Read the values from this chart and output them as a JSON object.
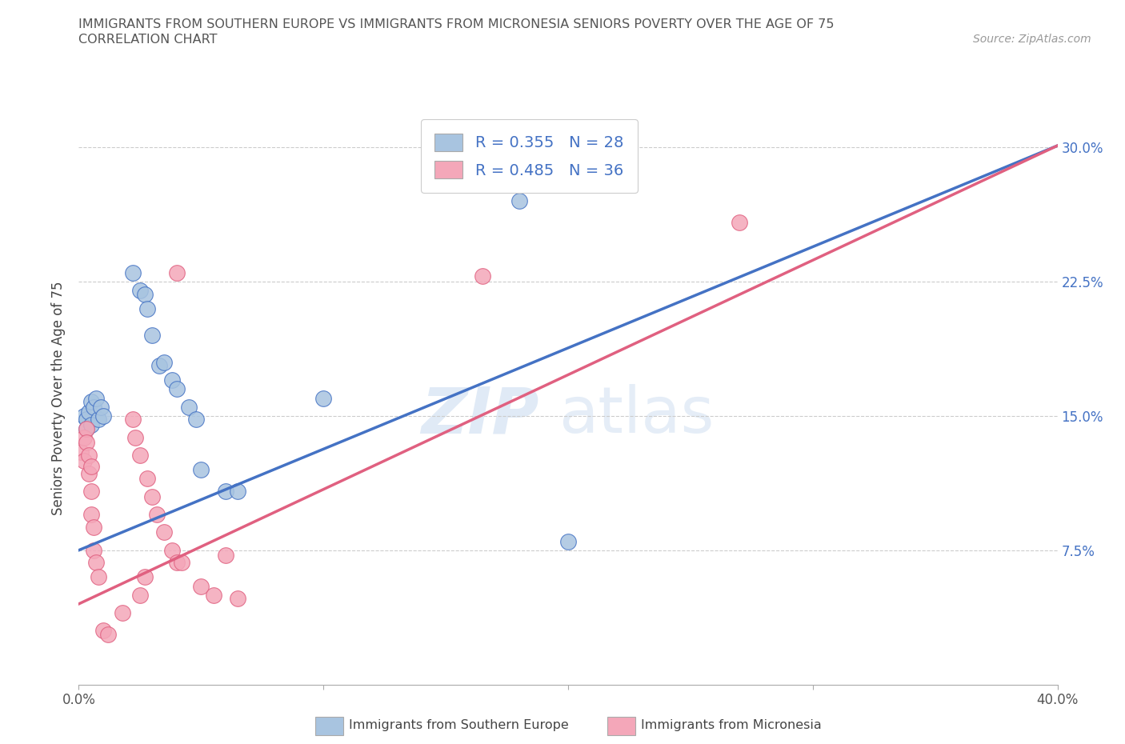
{
  "title_line1": "IMMIGRANTS FROM SOUTHERN EUROPE VS IMMIGRANTS FROM MICRONESIA SENIORS POVERTY OVER THE AGE OF 75",
  "title_line2": "CORRELATION CHART",
  "source_text": "Source: ZipAtlas.com",
  "ylabel": "Seniors Poverty Over the Age of 75",
  "y_ticks": [
    0.075,
    0.15,
    0.225,
    0.3
  ],
  "y_ticklabels": [
    "7.5%",
    "15.0%",
    "22.5%",
    "30.0%"
  ],
  "xlim": [
    0.0,
    0.4
  ],
  "ylim": [
    0.0,
    0.32
  ],
  "watermark_zip": "ZIP",
  "watermark_atlas": "atlas",
  "legend_label_blue": "Immigrants from Southern Europe",
  "legend_label_pink": "Immigrants from Micronesia",
  "R_blue": 0.355,
  "N_blue": 28,
  "R_pink": 0.485,
  "N_pink": 36,
  "blue_color": "#a8c4e0",
  "pink_color": "#f4a7b9",
  "blue_line_color": "#4472c4",
  "pink_line_color": "#e06080",
  "blue_scatter": [
    [
      0.002,
      0.15
    ],
    [
      0.003,
      0.148
    ],
    [
      0.003,
      0.143
    ],
    [
      0.004,
      0.152
    ],
    [
      0.005,
      0.158
    ],
    [
      0.005,
      0.145
    ],
    [
      0.006,
      0.155
    ],
    [
      0.007,
      0.16
    ],
    [
      0.008,
      0.148
    ],
    [
      0.009,
      0.155
    ],
    [
      0.01,
      0.15
    ],
    [
      0.022,
      0.23
    ],
    [
      0.025,
      0.22
    ],
    [
      0.027,
      0.218
    ],
    [
      0.028,
      0.21
    ],
    [
      0.03,
      0.195
    ],
    [
      0.033,
      0.178
    ],
    [
      0.035,
      0.18
    ],
    [
      0.038,
      0.17
    ],
    [
      0.04,
      0.165
    ],
    [
      0.045,
      0.155
    ],
    [
      0.048,
      0.148
    ],
    [
      0.05,
      0.12
    ],
    [
      0.06,
      0.108
    ],
    [
      0.065,
      0.108
    ],
    [
      0.1,
      0.16
    ],
    [
      0.18,
      0.27
    ],
    [
      0.2,
      0.08
    ]
  ],
  "pink_scatter": [
    [
      0.001,
      0.13
    ],
    [
      0.002,
      0.138
    ],
    [
      0.002,
      0.125
    ],
    [
      0.003,
      0.143
    ],
    [
      0.003,
      0.135
    ],
    [
      0.004,
      0.128
    ],
    [
      0.004,
      0.118
    ],
    [
      0.005,
      0.122
    ],
    [
      0.005,
      0.108
    ],
    [
      0.005,
      0.095
    ],
    [
      0.006,
      0.088
    ],
    [
      0.006,
      0.075
    ],
    [
      0.007,
      0.068
    ],
    [
      0.008,
      0.06
    ],
    [
      0.01,
      0.03
    ],
    [
      0.022,
      0.148
    ],
    [
      0.023,
      0.138
    ],
    [
      0.025,
      0.128
    ],
    [
      0.028,
      0.115
    ],
    [
      0.03,
      0.105
    ],
    [
      0.032,
      0.095
    ],
    [
      0.035,
      0.085
    ],
    [
      0.038,
      0.075
    ],
    [
      0.04,
      0.068
    ],
    [
      0.042,
      0.068
    ],
    [
      0.05,
      0.055
    ],
    [
      0.055,
      0.05
    ],
    [
      0.06,
      0.072
    ],
    [
      0.04,
      0.23
    ],
    [
      0.012,
      0.028
    ],
    [
      0.018,
      0.04
    ],
    [
      0.025,
      0.05
    ],
    [
      0.027,
      0.06
    ],
    [
      0.065,
      0.048
    ],
    [
      0.165,
      0.228
    ],
    [
      0.27,
      0.258
    ]
  ],
  "blue_line_intercept": 0.075,
  "blue_line_slope": 0.565,
  "pink_line_intercept": 0.045,
  "pink_line_slope": 0.64,
  "dashed_line_intercept": 0.075,
  "dashed_line_slope": 0.565
}
